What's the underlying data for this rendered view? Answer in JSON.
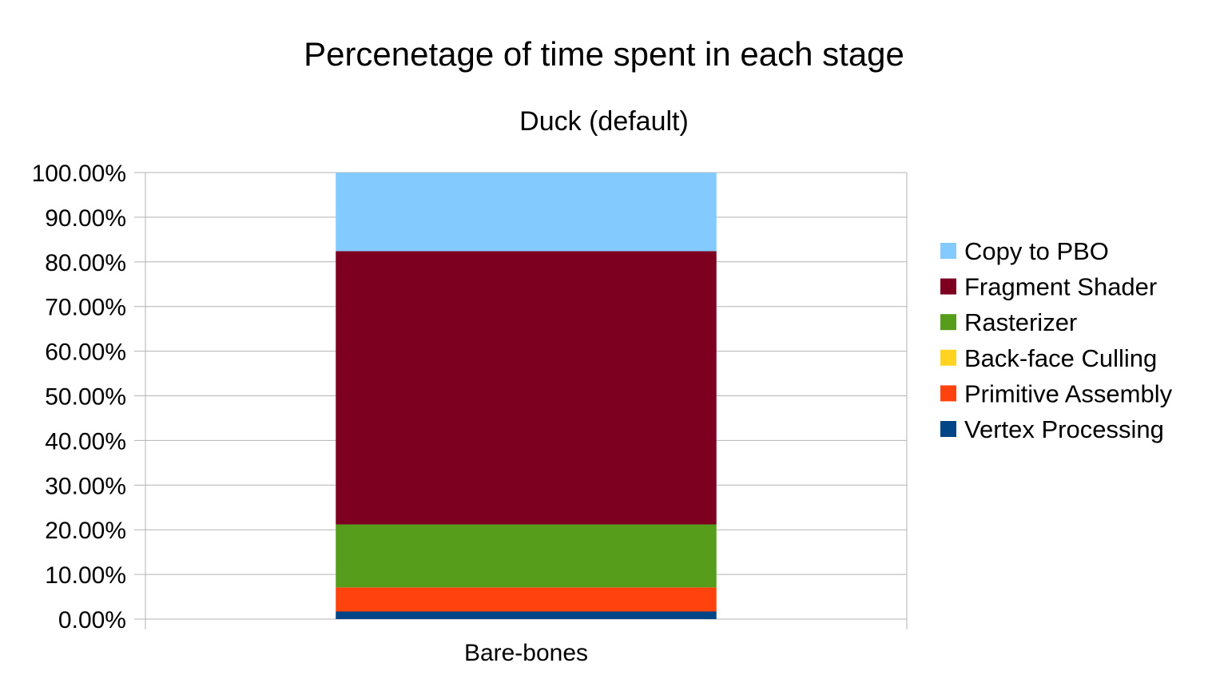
{
  "chart_data": {
    "type": "bar",
    "stacked": true,
    "title": "Percenetage of time spent in each stage",
    "subtitle": "Duck (default)",
    "xlabel": "",
    "ylabel": "",
    "categories": [
      "Bare-bones"
    ],
    "ylim": [
      0,
      1
    ],
    "yticks": [
      0,
      0.1,
      0.2,
      0.3,
      0.4,
      0.5,
      0.6,
      0.7,
      0.8,
      0.9,
      1.0
    ],
    "ytick_labels": [
      "0.00%",
      "10.00%",
      "20.00%",
      "30.00%",
      "40.00%",
      "50.00%",
      "60.00%",
      "70.00%",
      "80.00%",
      "90.00%",
      "100.00%"
    ],
    "grid": true,
    "legend_position": "right",
    "series": [
      {
        "name": "Vertex Processing",
        "color": "#004586",
        "values": [
          0.017
        ]
      },
      {
        "name": "Primitive Assembly",
        "color": "#ff420e",
        "values": [
          0.054
        ]
      },
      {
        "name": "Back-face Culling",
        "color": "#ffd320",
        "values": [
          0.0
        ]
      },
      {
        "name": "Rasterizer",
        "color": "#579d1c",
        "values": [
          0.141
        ]
      },
      {
        "name": "Fragment Shader",
        "color": "#7e0021",
        "values": [
          0.612
        ]
      },
      {
        "name": "Copy to PBO",
        "color": "#83caff",
        "values": [
          0.176
        ]
      }
    ]
  }
}
